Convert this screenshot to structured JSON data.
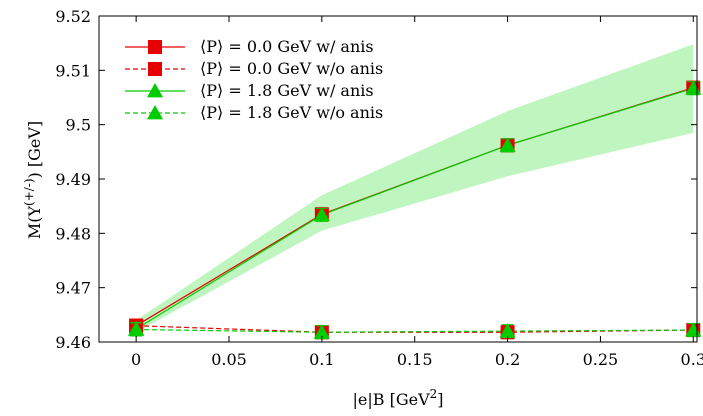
{
  "chart_data": {
    "type": "line",
    "xlabel_main": "|e|B [GeV",
    "xlabel_sup": "2",
    "xlabel_end": "]",
    "ylabel_main": "M(Υ",
    "ylabel_sup": "(+/-)",
    "ylabel_end": ") [GeV]",
    "xlim": [
      -0.02,
      0.302
    ],
    "ylim": [
      9.46,
      9.52
    ],
    "xticks": [
      {
        "value": 0,
        "label": "0"
      },
      {
        "value": 0.05,
        "label": "0.05"
      },
      {
        "value": 0.1,
        "label": "0.1"
      },
      {
        "value": 0.15,
        "label": "0.15"
      },
      {
        "value": 0.2,
        "label": "0.2"
      },
      {
        "value": 0.25,
        "label": "0.25"
      },
      {
        "value": 0.3,
        "label": "0.3"
      }
    ],
    "yticks": [
      {
        "value": 9.46,
        "label": "9.46"
      },
      {
        "value": 9.47,
        "label": "9.47"
      },
      {
        "value": 9.48,
        "label": "9.48"
      },
      {
        "value": 9.49,
        "label": "9.49"
      },
      {
        "value": 9.5,
        "label": "9.5"
      },
      {
        "value": 9.51,
        "label": "9.51"
      },
      {
        "value": 9.52,
        "label": "9.52"
      }
    ],
    "grid": false,
    "legend_position": "top-left",
    "band": {
      "color": "#bff5bf",
      "x": [
        0,
        0.1,
        0.2,
        0.3
      ],
      "lower": [
        9.4618,
        9.4805,
        9.4905,
        9.4985
      ],
      "upper": [
        9.464,
        9.487,
        9.5025,
        9.5148
      ]
    },
    "series": [
      {
        "name": "⟨P⟩  = 0.0 GeV w/ anis",
        "color": "#e60000",
        "marker": "square",
        "dash": "solid",
        "x": [
          0,
          0.1,
          0.2,
          0.3
        ],
        "y": [
          9.463,
          9.4835,
          9.4962,
          9.5068
        ]
      },
      {
        "name": "⟨P⟩  = 0.0 GeV w/o anis",
        "color": "#e60000",
        "marker": "square",
        "dash": "dashed",
        "x": [
          0,
          0.1,
          0.2,
          0.3
        ],
        "y": [
          9.463,
          9.4618,
          9.4618,
          9.4622
        ]
      },
      {
        "name": "⟨P⟩  = 1.8 GeV w/ anis",
        "color": "#00cc00",
        "marker": "triangle",
        "dash": "solid",
        "x": [
          0,
          0.1,
          0.2,
          0.3
        ],
        "y": [
          9.4624,
          9.4834,
          9.4962,
          9.5067
        ]
      },
      {
        "name": "⟨P⟩  = 1.8 GeV w/o anis",
        "color": "#00cc00",
        "marker": "triangle",
        "dash": "dashed",
        "x": [
          0,
          0.1,
          0.2,
          0.3
        ],
        "y": [
          9.4623,
          9.4618,
          9.462,
          9.4622
        ]
      }
    ],
    "error_bar": 0.0012
  }
}
